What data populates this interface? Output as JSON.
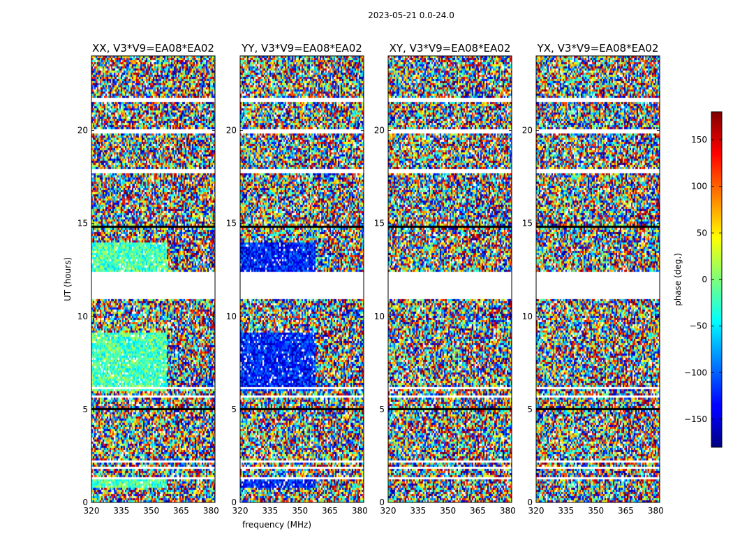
{
  "figure": {
    "suptitle": "2023-05-21 0.0-24.0"
  },
  "colorbar": {
    "label": "phase (deg.)",
    "colormap": "jet",
    "range": [
      -180,
      180
    ],
    "ticks": [
      -150,
      -100,
      -50,
      0,
      50,
      100,
      150
    ],
    "tick_labels": [
      "−150",
      "−100",
      "−50",
      "0",
      "50",
      "100",
      "150"
    ]
  },
  "chart_data": [
    {
      "type": "heatmap",
      "title": "XX, V3*V9=EA08*EA02",
      "xlabel": "",
      "ylabel": "UT (hours)",
      "xlim": [
        320,
        382
      ],
      "ylim": [
        0,
        24
      ],
      "xticks": [
        320,
        335,
        350,
        365,
        380
      ],
      "yticks": [
        0,
        5,
        10,
        15,
        20
      ],
      "zlim": [
        -180,
        180
      ]
    },
    {
      "type": "heatmap",
      "title": "YY, V3*V9=EA08*EA02",
      "xlabel": "frequency (MHz)",
      "ylabel": "",
      "xlim": [
        320,
        382
      ],
      "ylim": [
        0,
        24
      ],
      "xticks": [
        320,
        335,
        350,
        365,
        380
      ],
      "yticks": [
        0,
        5,
        10,
        15,
        20
      ],
      "zlim": [
        -180,
        180
      ]
    },
    {
      "type": "heatmap",
      "title": "XY, V3*V9=EA08*EA02",
      "xlabel": "",
      "ylabel": "",
      "xlim": [
        320,
        382
      ],
      "ylim": [
        0,
        24
      ],
      "xticks": [
        320,
        335,
        350,
        365,
        380
      ],
      "yticks": [
        0,
        5,
        10,
        15,
        20
      ],
      "zlim": [
        -180,
        180
      ]
    },
    {
      "type": "heatmap",
      "title": "YX, V3*V9=EA08*EA02",
      "xlabel": "",
      "ylabel": "",
      "xlim": [
        320,
        382
      ],
      "ylim": [
        0,
        24
      ],
      "xticks": [
        320,
        335,
        350,
        365,
        380
      ],
      "yticks": [
        0,
        5,
        10,
        15,
        20
      ],
      "zlim": [
        -180,
        180
      ]
    }
  ]
}
